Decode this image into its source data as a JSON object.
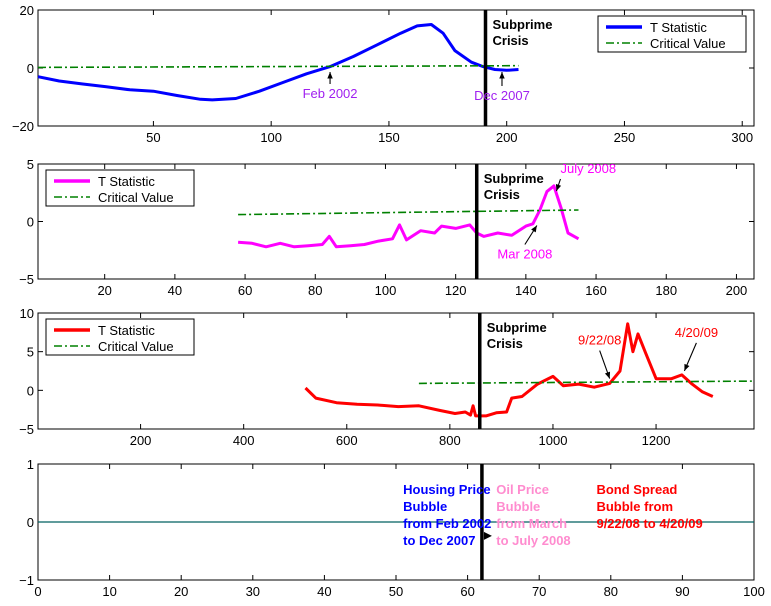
{
  "chart_data": [
    {
      "type": "line",
      "xlim": [
        1,
        305
      ],
      "ylim": [
        -20,
        20
      ],
      "x_ticks": [
        50,
        100,
        150,
        200,
        250,
        300
      ],
      "y_ticks": [
        -20,
        0,
        20
      ],
      "legend": {
        "placement": "top-right",
        "entries": [
          "T Statistic",
          "Critical Value"
        ]
      },
      "series": [
        {
          "name": "T Statistic",
          "color": "#0000ff",
          "x": [
            1,
            10,
            20,
            30,
            40,
            50,
            60,
            70,
            75,
            85,
            95,
            105,
            115,
            125,
            135,
            145,
            155,
            162,
            168,
            173,
            178,
            185,
            190,
            195,
            200,
            205
          ],
          "y": [
            -3,
            -4.5,
            -5.5,
            -6.5,
            -7.5,
            -8,
            -9.5,
            -10.8,
            -11,
            -10.5,
            -8,
            -5,
            -2,
            0.5,
            4,
            8,
            12,
            14.5,
            15,
            12,
            6,
            2,
            0.5,
            -0.5,
            -0.8,
            -0.5
          ]
        },
        {
          "name": "Critical Value",
          "color": "#008000",
          "style": "dash-dot",
          "x": [
            1,
            205
          ],
          "y": [
            0.2,
            0.8
          ]
        }
      ],
      "annotations": [
        {
          "text": "Feb 2002",
          "x": 125,
          "y": 0,
          "color": "#a020f0"
        },
        {
          "text": "Dec 2007",
          "x": 198,
          "y": 0,
          "color": "#a020f0"
        },
        {
          "text": "Subprime Crisis",
          "x": 191,
          "color": "#000000"
        }
      ],
      "vline_x": 191
    },
    {
      "type": "line",
      "xlim": [
        1,
        205
      ],
      "ylim": [
        -5,
        5
      ],
      "x_ticks": [
        20,
        40,
        60,
        80,
        100,
        120,
        140,
        160,
        180,
        200
      ],
      "y_ticks": [
        -5,
        0,
        5
      ],
      "legend": {
        "placement": "top-left",
        "entries": [
          "T Statistic",
          "Critical Value"
        ]
      },
      "series": [
        {
          "name": "T Statistic",
          "color": "#ff00ff",
          "x": [
            58,
            62,
            66,
            70,
            74,
            78,
            82,
            84,
            86,
            90,
            94,
            98,
            102,
            104,
            106,
            110,
            114,
            116,
            120,
            124,
            126,
            128,
            132,
            136,
            140,
            142,
            144,
            146,
            148,
            150,
            152,
            155
          ],
          "y": [
            -1.8,
            -1.9,
            -2.2,
            -1.9,
            -2.2,
            -2.1,
            -2.0,
            -1.3,
            -2.2,
            -2.1,
            -2.0,
            -1.7,
            -1.5,
            -0.3,
            -1.6,
            -0.8,
            -1.0,
            -0.4,
            -0.6,
            -0.3,
            -1.0,
            -1.3,
            -1.0,
            -1.2,
            -0.4,
            -0.2,
            1.0,
            2.6,
            3.1,
            1.2,
            -1.0,
            -1.5
          ]
        },
        {
          "name": "Critical Value",
          "color": "#008000",
          "style": "dash-dot",
          "x": [
            58,
            155
          ],
          "y": [
            0.6,
            1.0
          ]
        }
      ],
      "annotations": [
        {
          "text": "July 2008",
          "x": 151,
          "y": 3,
          "color": "#ff00ff"
        },
        {
          "text": "Mar 2008",
          "x": 142,
          "y": 0,
          "color": "#ff00ff"
        },
        {
          "text": "Subprime Crisis",
          "x": 126,
          "color": "#000000"
        }
      ],
      "vline_x": 126
    },
    {
      "type": "line",
      "xlim": [
        1,
        1390
      ],
      "ylim": [
        -5,
        10
      ],
      "x_ticks": [
        200,
        400,
        600,
        800,
        1000,
        1200
      ],
      "y_ticks": [
        -5,
        0,
        5,
        10
      ],
      "legend": {
        "placement": "top-left",
        "entries": [
          "T Statistic",
          "Critical Value"
        ]
      },
      "series": [
        {
          "name": "T Statistic",
          "color": "#ff0000",
          "x": [
            520,
            540,
            580,
            620,
            660,
            700,
            740,
            780,
            810,
            830,
            840,
            845,
            850,
            870,
            890,
            910,
            920,
            940,
            970,
            1000,
            1020,
            1050,
            1080,
            1110,
            1130,
            1145,
            1155,
            1165,
            1180,
            1200,
            1230,
            1250,
            1270,
            1290,
            1310
          ],
          "y": [
            0.3,
            -1.0,
            -1.6,
            -1.8,
            -1.9,
            -2.1,
            -2.0,
            -2.6,
            -3.0,
            -2.8,
            -3.2,
            -2.0,
            -3.3,
            -3.3,
            -2.9,
            -2.8,
            -1.0,
            -0.8,
            0.8,
            1.8,
            0.6,
            0.8,
            0.4,
            0.9,
            2.5,
            8.6,
            5.0,
            7.3,
            4.8,
            1.5,
            1.5,
            2.0,
            0.8,
            -0.2,
            -0.8
          ]
        },
        {
          "name": "Critical Value",
          "color": "#008000",
          "style": "dash-dot",
          "x": [
            740,
            1390
          ],
          "y": [
            0.9,
            1.2
          ]
        }
      ],
      "annotations": [
        {
          "text": "9/22/08",
          "x": 1110,
          "y": 1,
          "color": "#ff0000"
        },
        {
          "text": "4/20/09",
          "x": 1255,
          "y": 2,
          "color": "#ff0000"
        },
        {
          "text": "Subprime Crisis",
          "x": 858,
          "color": "#000000"
        }
      ],
      "vline_x": 858
    },
    {
      "type": "line",
      "xlim": [
        0,
        100
      ],
      "ylim": [
        -1,
        1
      ],
      "x_ticks": [
        0,
        10,
        20,
        30,
        40,
        50,
        60,
        70,
        80,
        90,
        100
      ],
      "y_ticks": [
        -1,
        0,
        1
      ],
      "series": [
        {
          "color": "#006060",
          "x": [
            0,
            100
          ],
          "y": [
            0,
            0
          ]
        }
      ],
      "vline_x": 62,
      "text_blocks": [
        {
          "lines": [
            "Housing Price",
            "Bubble",
            "from Feb 2002",
            "to Dec 2007"
          ],
          "color": "#0000ff",
          "x": 51
        },
        {
          "lines": [
            "Oil Price",
            "Bubble",
            "from March",
            "to July 2008"
          ],
          "color": "#ff8ccf",
          "x": 64
        },
        {
          "lines": [
            "Bond Spread",
            "Bubble from",
            "9/22/08 to 4/20/09"
          ],
          "color": "#ff0000",
          "x": 78
        }
      ]
    }
  ]
}
